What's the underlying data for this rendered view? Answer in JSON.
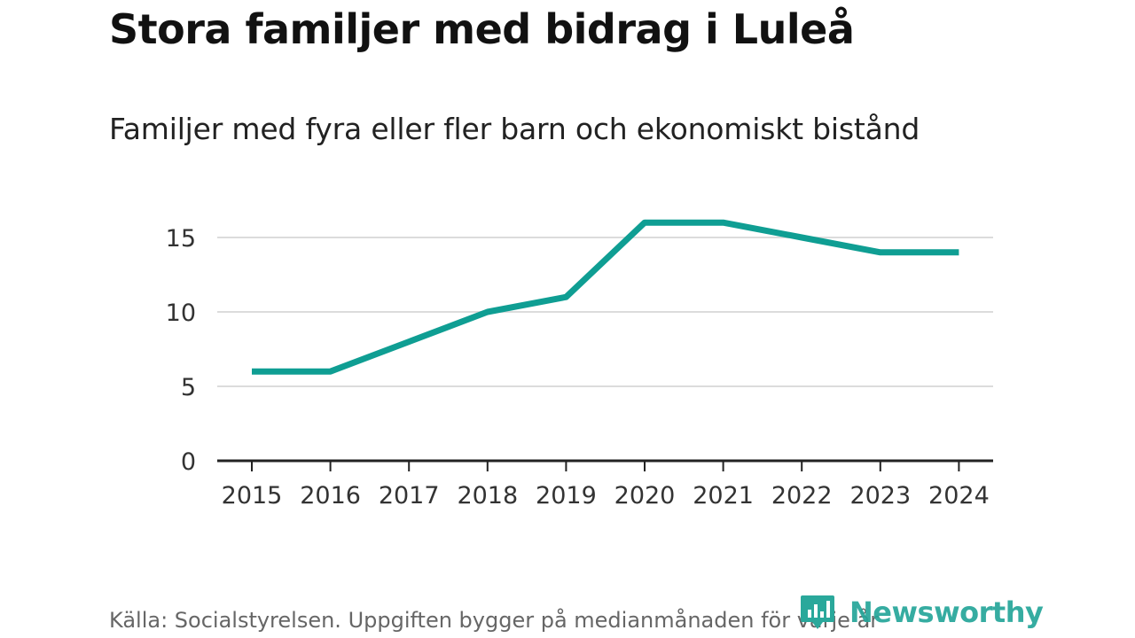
{
  "chart_data": {
    "type": "line",
    "title": "Stora familjer med bidrag i Luleå",
    "subtitle": "Familjer med fyra eller fler barn och ekonomiskt bistånd",
    "x": [
      "2015",
      "2016",
      "2017",
      "2018",
      "2019",
      "2020",
      "2021",
      "2022",
      "2023",
      "2024"
    ],
    "series": [
      {
        "name": "Familjer",
        "values": [
          6,
          6,
          8,
          10,
          11,
          16,
          16,
          15,
          14,
          14
        ],
        "color": "#0f9e93"
      }
    ],
    "yticks": [
      0,
      5,
      10,
      15
    ],
    "ylim": [
      0,
      17
    ],
    "grid": true,
    "xlabel": "",
    "ylabel": ""
  },
  "source": "Källa: Socialstyrelsen. Uppgiften bygger på medianmånaden för varje år",
  "logo": {
    "text": "Newsworthy",
    "color": "#25a69a"
  }
}
